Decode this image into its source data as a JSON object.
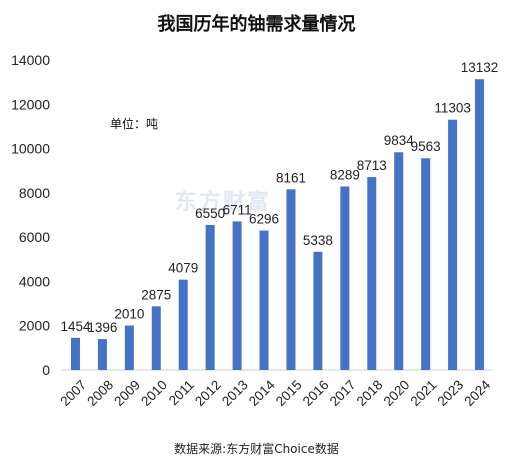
{
  "chart_data": {
    "type": "bar",
    "title": "我国历年的铀需求量情况",
    "unit_label": "单位：吨",
    "source": "数据来源:东方财富Choice数据",
    "watermark": "东方财富",
    "categories": [
      "2007",
      "2008",
      "2009",
      "2010",
      "2011",
      "2012",
      "2013",
      "2014",
      "2015",
      "2016",
      "2017",
      "2018",
      "2020",
      "2021",
      "2023",
      "2024"
    ],
    "values": [
      1454,
      1396,
      2010,
      2875,
      4079,
      6550,
      6711,
      6296,
      8161,
      5338,
      8289,
      8713,
      9834,
      9563,
      11303,
      13132
    ],
    "ylim": [
      0,
      14000
    ],
    "yticks": [
      0,
      2000,
      4000,
      6000,
      8000,
      10000,
      12000,
      14000
    ],
    "grid": false,
    "legend": "none",
    "bar_color": "#4472c4"
  }
}
